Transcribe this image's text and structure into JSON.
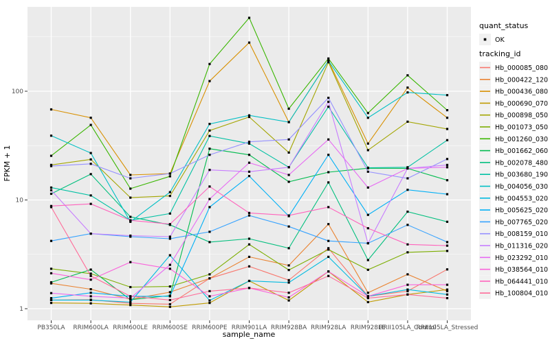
{
  "figure": {
    "y_axis_title": "FPKM + 1",
    "x_axis_title": "sample_name",
    "legend": {
      "quant_status_title": "quant_status",
      "quant_status_items": [
        {
          "label": "OK",
          "shape": "point",
          "color": "#000000"
        }
      ],
      "tracking_id_title": "tracking_id"
    },
    "colors": {
      "panel_background": "#EBEBEB",
      "gridline": "#FFFFFF",
      "tick_text": "#4d4d4d",
      "legend_key_background": "#F1F1F1",
      "point_marker": "#000000"
    }
  },
  "chart_data": {
    "type": "line",
    "title": "",
    "xlabel": "sample_name",
    "ylabel": "FPKM + 1",
    "yscale": "log10",
    "ylim": [
      0.85,
      600
    ],
    "yticks": [
      1,
      10,
      100
    ],
    "ytick_labels": [
      "1",
      "10",
      "100"
    ],
    "grid": "white major gridlines at ticks, minor at half-decades, gray panel",
    "legend_position": "right",
    "point_markers": "black point on every observation (quant_status = OK)",
    "categories": [
      "PB350LA",
      "RRIM600LA",
      "RRIM600LE",
      "RRIM600SE",
      "RRIM600PE",
      "RRIM901LA",
      "RRIM928BA",
      "RRIM928LA",
      "RRIM928LE",
      "RRII105LA_Control",
      "RRII105LA_Stressed"
    ],
    "series": [
      {
        "name": "Hb_000085_080",
        "color": "#F8766D",
        "values": [
          1.2,
          1.21,
          1.12,
          1.1,
          1.9,
          2.45,
          1.83,
          3.6,
          1.3,
          1.45,
          2.3
        ]
      },
      {
        "name": "Hb_000422_120",
        "color": "#EA8331",
        "values": [
          1.71,
          1.51,
          1.22,
          1.42,
          1.9,
          3.0,
          2.5,
          6.0,
          1.4,
          2.07,
          1.45
        ]
      },
      {
        "name": "Hb_000436_080",
        "color": "#D89000",
        "values": [
          68,
          57,
          17,
          17.5,
          124,
          280,
          52,
          190,
          33,
          108,
          57
        ]
      },
      {
        "name": "Hb_000690_070",
        "color": "#C09B00",
        "values": [
          1.13,
          1.12,
          1.08,
          1.04,
          1.13,
          1.8,
          1.19,
          2.2,
          1.15,
          1.35,
          1.5
        ]
      },
      {
        "name": "Hb_000898_050",
        "color": "#A3A500",
        "values": [
          21,
          23.6,
          10.5,
          10.9,
          43.5,
          58,
          27.3,
          185,
          28.7,
          52.5,
          45
        ]
      },
      {
        "name": "Hb_001073_050",
        "color": "#7CAE00",
        "values": [
          2.33,
          2.1,
          1.58,
          1.6,
          2.07,
          3.9,
          2.27,
          3.5,
          2.28,
          3.3,
          3.4
        ]
      },
      {
        "name": "Hb_001260_030",
        "color": "#39B600",
        "values": [
          25.5,
          49,
          12.7,
          16.5,
          178,
          473,
          69,
          200,
          63,
          140,
          67
        ]
      },
      {
        "name": "Hb_001662_060",
        "color": "#00BB4E",
        "values": [
          1.75,
          2.29,
          1.21,
          1.32,
          29.6,
          26,
          14.7,
          18,
          19.6,
          19.5,
          15.2
        ]
      },
      {
        "name": "Hb_002078_480",
        "color": "#00BF7D",
        "values": [
          11.4,
          17.3,
          7.0,
          5.9,
          4.1,
          4.4,
          3.6,
          14.5,
          2.8,
          7.8,
          6.3
        ]
      },
      {
        "name": "Hb_003680_190",
        "color": "#00C1A3",
        "values": [
          13,
          11,
          6.5,
          7.5,
          38.8,
          33,
          20,
          72,
          19.8,
          20,
          35.5
        ]
      },
      {
        "name": "Hb_004056_030",
        "color": "#00BFC4",
        "values": [
          39,
          27,
          6.3,
          11.8,
          50,
          60,
          52,
          190,
          57,
          97.5,
          92
        ]
      },
      {
        "name": "Hb_004553_020",
        "color": "#00BAE0",
        "values": [
          1.2,
          1.2,
          1.15,
          3.1,
          1.19,
          1.8,
          1.74,
          3.0,
          1.3,
          1.5,
          1.35
        ]
      },
      {
        "name": "Hb_005625_020",
        "color": "#00B0F6",
        "values": [
          1.25,
          1.4,
          1.3,
          1.3,
          8.6,
          16.6,
          7.1,
          26,
          7.3,
          12.4,
          11.3
        ]
      },
      {
        "name": "Hb_007765_020",
        "color": "#35A2FF",
        "values": [
          4.2,
          4.9,
          4.6,
          4.4,
          5.1,
          7.2,
          5.7,
          4.2,
          4.0,
          5.9,
          4.1
        ]
      },
      {
        "name": "Hb_008159_010",
        "color": "#9590FF",
        "values": [
          20.5,
          21.5,
          15.8,
          17.5,
          26,
          34.3,
          36,
          87,
          18.2,
          15.8,
          23.8
        ]
      },
      {
        "name": "Hb_011316_020",
        "color": "#C77CFF",
        "values": [
          12.3,
          4.9,
          4.7,
          4.6,
          18.9,
          18.2,
          20,
          80,
          4.0,
          19.5,
          21
        ]
      },
      {
        "name": "Hb_023292_010",
        "color": "#E76BF3",
        "values": [
          1.39,
          1.3,
          1.25,
          2.53,
          10.2,
          22,
          17,
          36,
          13,
          19.5,
          20
        ]
      },
      {
        "name": "Hb_038564_010",
        "color": "#FA62DB",
        "values": [
          2.12,
          1.85,
          2.68,
          2.33,
          1.3,
          1.55,
          1.27,
          2.2,
          1.3,
          1.66,
          1.66
        ]
      },
      {
        "name": "Hb_064441_010",
        "color": "#FF62BC",
        "values": [
          8.8,
          9.2,
          6.5,
          6.0,
          13.3,
          7.6,
          7.2,
          8.6,
          5.5,
          3.9,
          3.8
        ]
      },
      {
        "name": "Hb_100804_010",
        "color": "#FF6A98",
        "values": [
          8.6,
          2.0,
          1.3,
          1.2,
          1.45,
          1.55,
          1.4,
          2.0,
          1.25,
          1.35,
          1.25
        ]
      }
    ]
  }
}
